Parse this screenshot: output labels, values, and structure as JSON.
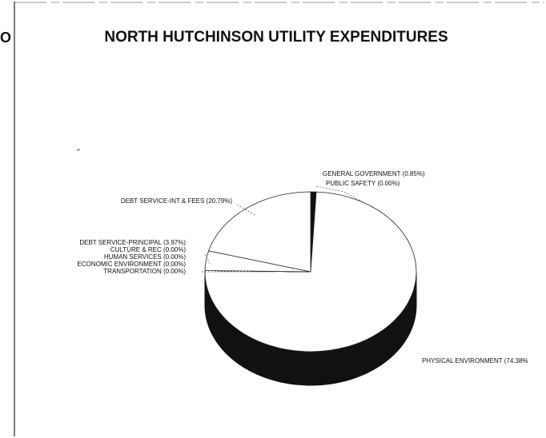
{
  "edge_text": "O",
  "chart_data": {
    "type": "pie",
    "title": "NORTH HUTCHINSON UTILITY EXPENDITURES",
    "categories": [
      "GENERAL GOVERNMENT",
      "PUBLIC SAFETY",
      "PHYSICAL ENVIRONMENT",
      "TRANSPORTATION",
      "ECONOMIC ENVIRONMENT",
      "HUMAN SERVICES",
      "CULTURE & REC",
      "DEBT SERVICE-PRINCIPAL",
      "DEBT SERVICE-INT & FEES"
    ],
    "values": [
      0.85,
      0,
      74.38,
      0,
      0,
      0,
      0,
      3.97,
      20.79
    ],
    "value_labels": [
      "(0.85%)",
      "(0.00%)",
      "(74.38%",
      "(0.00%)",
      "(0.00%)",
      "(0.00%)",
      "(0.00%)",
      "(3.97%)",
      "(20.79%)"
    ],
    "colors": [
      "#111111",
      "#ffffff",
      "#ffffff",
      "#ffffff",
      "#ffffff",
      "#ffffff",
      "#ffffff",
      "#ffffff",
      "#ffffff"
    ]
  }
}
